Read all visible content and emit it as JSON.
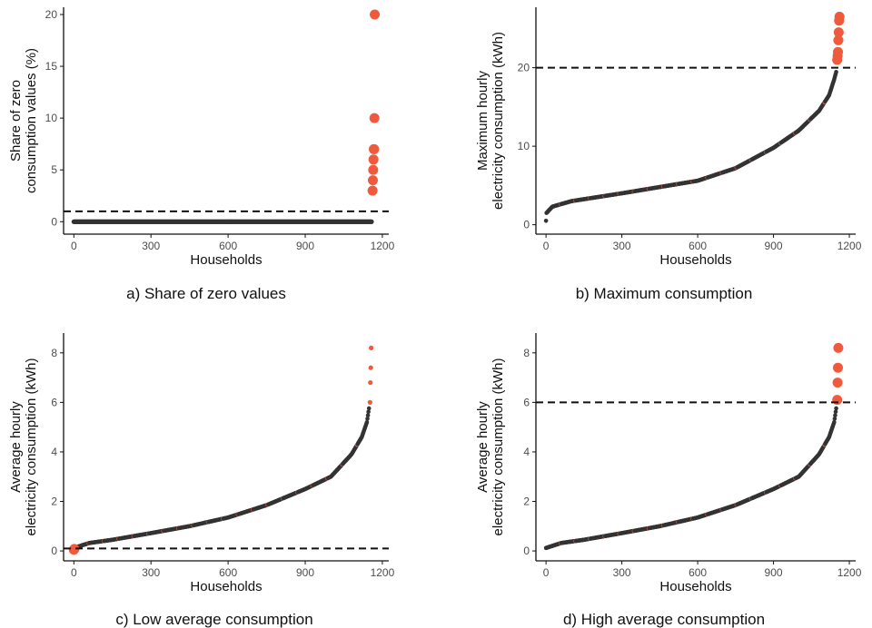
{
  "colors": {
    "normal": "#333333",
    "outlier": "#f05a3c",
    "axis": "#111111",
    "threshold": "#111111"
  },
  "chart_data": [
    {
      "type": "scatter",
      "caption": "a) Share of zero values",
      "xlabel": "Households",
      "ylabel": [
        "Share of zero",
        "consumption values (%)"
      ],
      "xlim": [
        -40,
        1225
      ],
      "ylim": [
        -1.2,
        20.7
      ],
      "xticks": [
        0,
        300,
        600,
        900,
        1200
      ],
      "yticks": [
        0,
        5,
        10,
        15,
        20
      ],
      "threshold": 1,
      "shape": "zeros",
      "n": 1160,
      "outliers_low": [],
      "outliers_high": [
        3,
        4,
        5,
        6,
        7,
        7,
        10,
        20
      ]
    },
    {
      "type": "scatter",
      "caption": "b) Maximum consumption",
      "xlabel": "Households",
      "ylabel": [
        "Maximum hourly",
        "electricity consumption (kWh)"
      ],
      "xlim": [
        -40,
        1225
      ],
      "ylim": [
        -1.2,
        27.7
      ],
      "xticks": [
        0,
        300,
        600,
        900,
        1200
      ],
      "yticks": [
        0,
        10,
        20
      ],
      "threshold": 20,
      "shape": "sorted",
      "n": 1150,
      "curve": [
        [
          0,
          0.5
        ],
        [
          2,
          1.5
        ],
        [
          25,
          2.3
        ],
        [
          100,
          3.0
        ],
        [
          300,
          4.0
        ],
        [
          600,
          5.6
        ],
        [
          750,
          7.2
        ],
        [
          900,
          9.8
        ],
        [
          1000,
          12.0
        ],
        [
          1080,
          14.5
        ],
        [
          1120,
          16.5
        ],
        [
          1140,
          18.5
        ],
        [
          1150,
          19.7
        ]
      ],
      "outliers_low": [],
      "outliers_high": [
        21.0,
        21.5,
        22.0,
        23.5,
        24.5,
        26.0,
        26.5
      ]
    },
    {
      "type": "scatter",
      "caption": "c) Low average consumption",
      "xlabel": "Households",
      "ylabel": [
        "Average hourly",
        "electricity consumption (kWh)"
      ],
      "xlim": [
        -40,
        1225
      ],
      "ylim": [
        -0.4,
        8.8
      ],
      "xticks": [
        0,
        300,
        600,
        900,
        1200
      ],
      "yticks": [
        0,
        2,
        4,
        6,
        8
      ],
      "threshold": 0.1,
      "shape": "sorted",
      "n": 1150,
      "curve": [
        [
          0,
          0.12
        ],
        [
          60,
          0.32
        ],
        [
          150,
          0.45
        ],
        [
          300,
          0.72
        ],
        [
          450,
          1.0
        ],
        [
          600,
          1.35
        ],
        [
          750,
          1.85
        ],
        [
          900,
          2.5
        ],
        [
          1000,
          3.0
        ],
        [
          1080,
          3.9
        ],
        [
          1120,
          4.6
        ],
        [
          1140,
          5.2
        ],
        [
          1150,
          5.9
        ]
      ],
      "outliers_low": [
        0.05,
        0.06,
        0.08
      ],
      "outliers_high": [
        6.0,
        6.8,
        7.4,
        8.2
      ]
    },
    {
      "type": "scatter",
      "caption": "d) High average consumption",
      "xlabel": "Households",
      "ylabel": [
        "Average hourly",
        "electricity consumption (kWh)"
      ],
      "xlim": [
        -40,
        1225
      ],
      "ylim": [
        -0.4,
        8.8
      ],
      "xticks": [
        0,
        300,
        600,
        900,
        1200
      ],
      "yticks": [
        0,
        2,
        4,
        6,
        8
      ],
      "threshold": 6,
      "shape": "sorted",
      "n": 1150,
      "curve": [
        [
          0,
          0.12
        ],
        [
          60,
          0.32
        ],
        [
          150,
          0.45
        ],
        [
          300,
          0.72
        ],
        [
          450,
          1.0
        ],
        [
          600,
          1.35
        ],
        [
          750,
          1.85
        ],
        [
          900,
          2.5
        ],
        [
          1000,
          3.0
        ],
        [
          1080,
          3.9
        ],
        [
          1120,
          4.6
        ],
        [
          1140,
          5.2
        ],
        [
          1150,
          5.9
        ]
      ],
      "outliers_low": [],
      "outliers_high": [
        6.1,
        6.8,
        7.4,
        8.2
      ]
    }
  ]
}
